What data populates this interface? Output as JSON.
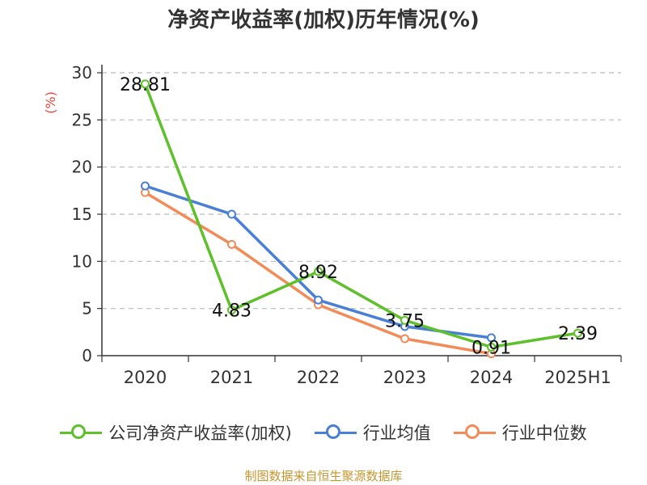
{
  "title": "净资产收益率(加权)历年情况(%)",
  "source": "制图数据来自恒生聚源数据库",
  "chart_data": {
    "type": "line",
    "title": "净资产收益率(加权)历年情况(%)",
    "ylabel": "(%)",
    "xlabel": "",
    "ylim": [
      0,
      30
    ],
    "yticks": [
      0,
      5,
      10,
      15,
      20,
      25,
      30
    ],
    "grid": true,
    "legend_position": "bottom",
    "categories": [
      "2020",
      "2021",
      "2022",
      "2023",
      "2024",
      "2025H1"
    ],
    "series": [
      {
        "name": "公司净资产收益率(加权)",
        "color": "#5ec02a",
        "values": [
          28.81,
          4.83,
          8.92,
          3.75,
          0.91,
          2.39
        ],
        "labels": [
          "28.81",
          "4.83",
          "8.92",
          "3.75",
          "0.91",
          "2.39"
        ]
      },
      {
        "name": "行业均值",
        "color": "#4a7fd6",
        "values": [
          18.0,
          15.0,
          5.9,
          3.1,
          1.9,
          null
        ]
      },
      {
        "name": "行业中位数",
        "color": "#f28b58",
        "values": [
          17.3,
          11.8,
          5.4,
          1.8,
          0.2,
          null
        ]
      }
    ]
  }
}
